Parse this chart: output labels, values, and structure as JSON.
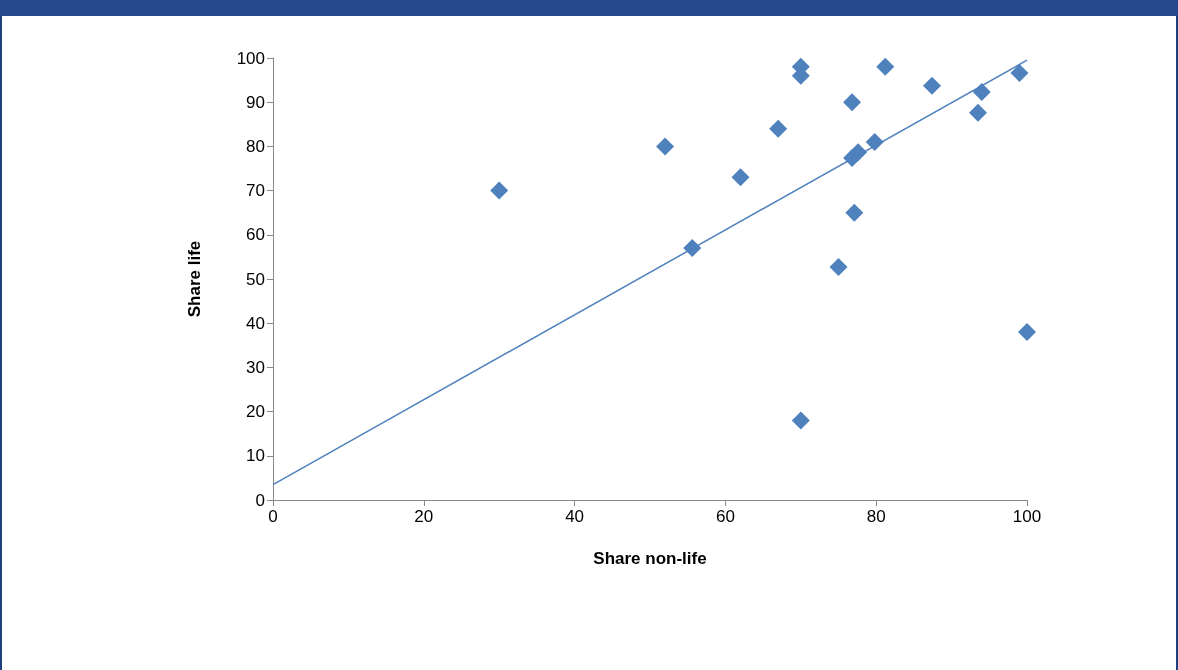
{
  "chart_data": {
    "type": "scatter",
    "xlabel": "Share non-life",
    "ylabel": "Share life",
    "xlim": [
      0,
      100
    ],
    "xticks": [
      0,
      20,
      40,
      60,
      80,
      100
    ],
    "ylim": [
      0,
      100
    ],
    "yticks": [
      0,
      10,
      20,
      30,
      40,
      50,
      60,
      70,
      80,
      90,
      100
    ],
    "grid": false,
    "marker": "diamond",
    "series": [
      {
        "color": "#4f81bd",
        "x": [
          30,
          52,
          55.6,
          62,
          67,
          70,
          70,
          70,
          75,
          76.8,
          76.8,
          77.1,
          77.6,
          79.8,
          81.2,
          87.4,
          93.5,
          94,
          99,
          100
        ],
        "values": [
          70,
          80,
          57,
          73,
          84,
          98,
          96,
          18,
          52.7,
          90,
          77.4,
          65,
          78.7,
          81,
          98,
          93.7,
          87.6,
          92.3,
          96.6,
          38
        ]
      },
      {
        "type": "line",
        "marker": "none",
        "line_style": "solid",
        "color": "#4f81bd",
        "x": [
          0,
          100
        ],
        "values": [
          3.5,
          99.5
        ]
      }
    ]
  }
}
